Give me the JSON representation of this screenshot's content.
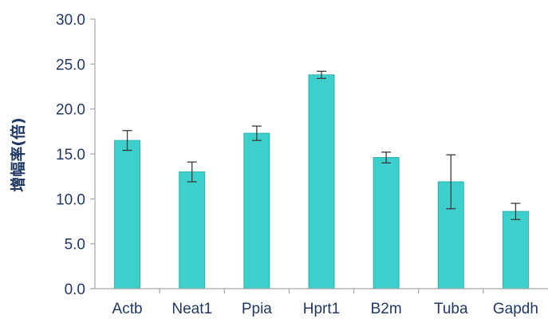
{
  "colors": {
    "bar": "#3dcfcc",
    "text": "#1f3864",
    "axis": "#a6a6a6",
    "errorbar": "#3a3a3a"
  },
  "chart_data": {
    "type": "bar",
    "title": "",
    "xlabel": "",
    "ylabel": "增幅率(倍)",
    "ylim": [
      0,
      30
    ],
    "yticks": [
      "0.0",
      "5.0",
      "10.0",
      "15.0",
      "20.0",
      "25.0",
      "30.0"
    ],
    "grid": false,
    "legend": "none",
    "categories": [
      "Actb",
      "Neat1",
      "Ppia",
      "Hprt1",
      "B2m",
      "Tuba",
      "Gapdh"
    ],
    "values": [
      16.5,
      13.0,
      17.3,
      23.8,
      14.6,
      11.9,
      8.6
    ],
    "error": [
      1.1,
      1.1,
      0.8,
      0.4,
      0.6,
      3.0,
      0.9
    ]
  }
}
